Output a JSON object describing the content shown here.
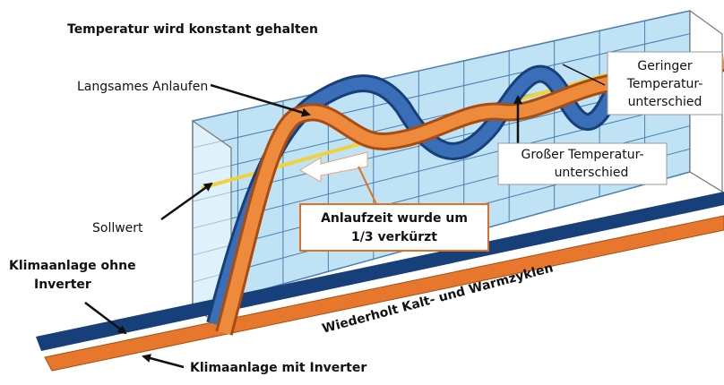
{
  "title": "Temperatur wird konstant gehalten",
  "labels": {
    "slow_start": "Langsames Anlaufen",
    "small_diff": [
      "Geringer",
      "Temperatur-",
      "unterschied"
    ],
    "large_diff": [
      "Großer Temperatur-",
      "unterschied"
    ],
    "setpoint": "Sollwert",
    "startup": [
      "Anlaufzeit wurde um",
      "1/3 verkürzt"
    ],
    "without_inverter": [
      "Klimaanlage ohne",
      "Inverter"
    ],
    "cycles": "Wiederholt Kalt- und Warmzyklen",
    "with_inverter": "Klimaanlage mit Inverter"
  }
}
